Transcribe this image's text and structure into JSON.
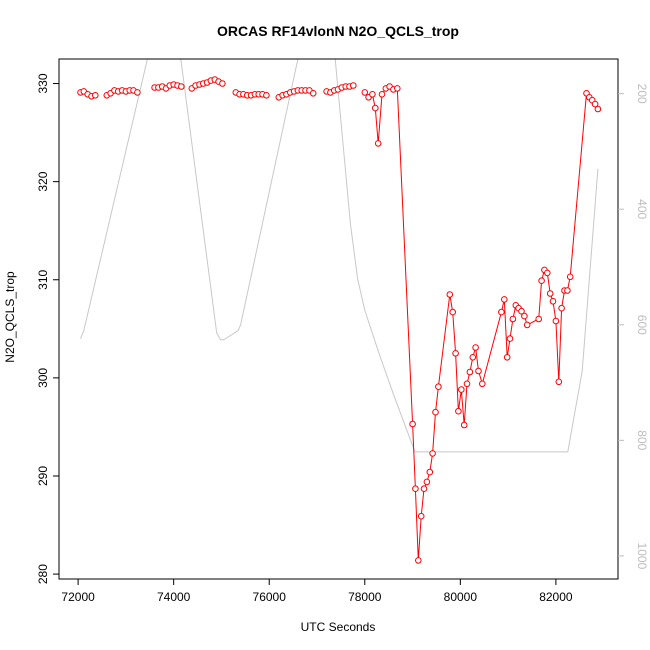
{
  "chart_data": {
    "type": "line",
    "title": "ORCAS RF14vlonN N2O_QCLS_trop",
    "xlabel": "UTC Seconds",
    "ylabel": "N2O_QCLS_trop",
    "xlim": [
      71600,
      83300
    ],
    "ylim": [
      279.5,
      332.5
    ],
    "x_ticks": [
      72000,
      74000,
      76000,
      78000,
      80000,
      82000
    ],
    "y_ticks": [
      280,
      290,
      300,
      310,
      320,
      330
    ],
    "y2_lim": [
      1040,
      140
    ],
    "y2_ticks": [
      200,
      400,
      600,
      800,
      1000
    ],
    "grid": false,
    "legend": "none",
    "colors": {
      "series": "#ff0000",
      "secondary": "#c8c8c8",
      "axis": "#000000",
      "secondary_axis": "#bdbdbd"
    },
    "series": [
      {
        "marker": "circle",
        "segments": [
          [
            [
              72050,
              329.1
            ],
            [
              72120,
              329.2
            ],
            [
              72200,
              328.9
            ],
            [
              72280,
              328.7
            ],
            [
              72360,
              328.8
            ]
          ],
          [
            [
              72600,
              328.8
            ],
            [
              72680,
              329.0
            ],
            [
              72760,
              329.3
            ],
            [
              72840,
              329.2
            ],
            [
              72920,
              329.3
            ],
            [
              73000,
              329.2
            ],
            [
              73080,
              329.3
            ],
            [
              73160,
              329.3
            ],
            [
              73240,
              329.1
            ]
          ],
          [
            [
              73600,
              329.6
            ],
            [
              73680,
              329.6
            ],
            [
              73760,
              329.7
            ],
            [
              73840,
              329.5
            ],
            [
              73920,
              329.8
            ],
            [
              74000,
              329.9
            ],
            [
              74080,
              329.8
            ],
            [
              74160,
              329.7
            ]
          ],
          [
            [
              74380,
              329.5
            ],
            [
              74460,
              329.8
            ],
            [
              74540,
              329.9
            ],
            [
              74620,
              330.0
            ],
            [
              74700,
              330.1
            ],
            [
              74780,
              330.3
            ],
            [
              74860,
              330.4
            ],
            [
              74940,
              330.2
            ],
            [
              75020,
              330.0
            ]
          ],
          [
            [
              75300,
              329.1
            ],
            [
              75380,
              328.9
            ],
            [
              75460,
              328.9
            ],
            [
              75540,
              328.8
            ],
            [
              75620,
              328.8
            ],
            [
              75700,
              328.9
            ],
            [
              75780,
              328.9
            ],
            [
              75860,
              328.9
            ],
            [
              75940,
              328.8
            ]
          ],
          [
            [
              76200,
              328.6
            ],
            [
              76280,
              328.8
            ],
            [
              76360,
              328.9
            ],
            [
              76440,
              329.1
            ],
            [
              76520,
              329.2
            ],
            [
              76600,
              329.3
            ],
            [
              76680,
              329.3
            ],
            [
              76760,
              329.3
            ],
            [
              76840,
              329.3
            ],
            [
              76920,
              329.0
            ]
          ],
          [
            [
              77200,
              329.2
            ],
            [
              77280,
              329.1
            ],
            [
              77360,
              329.3
            ],
            [
              77440,
              329.4
            ],
            [
              77520,
              329.6
            ],
            [
              77600,
              329.7
            ],
            [
              77680,
              329.7
            ],
            [
              77760,
              329.8
            ]
          ],
          [
            [
              78000,
              329.1
            ],
            [
              78080,
              328.6
            ],
            [
              78160,
              328.9
            ],
            [
              78220,
              327.5
            ],
            [
              78280,
              323.9
            ],
            [
              78360,
              328.9
            ],
            [
              78440,
              329.5
            ],
            [
              78520,
              329.7
            ],
            [
              78600,
              329.4
            ],
            [
              78680,
              329.5
            ],
            [
              79000,
              295.3
            ],
            [
              79060,
              288.7
            ],
            [
              79120,
              281.4
            ],
            [
              79180,
              285.9
            ],
            [
              79240,
              288.7
            ],
            [
              79300,
              289.4
            ],
            [
              79360,
              290.4
            ],
            [
              79420,
              292.3
            ],
            [
              79480,
              296.5
            ],
            [
              79540,
              299.1
            ],
            [
              79780,
              308.5
            ],
            [
              79840,
              306.7
            ],
            [
              79900,
              302.5
            ],
            [
              79960,
              296.6
            ],
            [
              80020,
              298.8
            ],
            [
              80080,
              295.2
            ],
            [
              80140,
              299.4
            ],
            [
              80200,
              300.6
            ],
            [
              80260,
              302.1
            ],
            [
              80320,
              303.1
            ],
            [
              80380,
              300.7
            ],
            [
              80460,
              299.4
            ],
            [
              80860,
              306.7
            ],
            [
              80920,
              308.0
            ],
            [
              80980,
              302.1
            ],
            [
              81040,
              304.0
            ],
            [
              81100,
              306.0
            ],
            [
              81160,
              307.4
            ],
            [
              81220,
              307.1
            ],
            [
              81280,
              306.8
            ],
            [
              81340,
              306.3
            ],
            [
              81400,
              305.4
            ],
            [
              81640,
              306.0
            ],
            [
              81700,
              309.9
            ],
            [
              81760,
              311.0
            ],
            [
              81820,
              310.7
            ],
            [
              81880,
              308.6
            ],
            [
              81940,
              307.8
            ],
            [
              82000,
              305.8
            ],
            [
              82060,
              299.6
            ],
            [
              82120,
              307.1
            ],
            [
              82180,
              308.9
            ],
            [
              82240,
              308.9
            ],
            [
              82300,
              310.3
            ],
            [
              82640,
              329.0
            ],
            [
              82700,
              328.6
            ],
            [
              82760,
              328.3
            ],
            [
              82820,
              327.9
            ],
            [
              82880,
              327.4
            ]
          ]
        ]
      },
      {
        "axis": "right",
        "style": "line",
        "points": [
          [
            72050,
            624
          ],
          [
            72120,
            610
          ],
          [
            73450,
            140
          ],
          [
            74150,
            140
          ],
          [
            74900,
            614
          ],
          [
            74980,
            626
          ],
          [
            75050,
            626
          ],
          [
            75350,
            610
          ],
          [
            75400,
            600
          ],
          [
            76600,
            140
          ],
          [
            77380,
            140
          ],
          [
            77700,
            425
          ],
          [
            77850,
            520
          ],
          [
            78000,
            575
          ],
          [
            78300,
            650
          ],
          [
            78600,
            720
          ],
          [
            79050,
            820
          ],
          [
            79120,
            820
          ],
          [
            82250,
            820
          ],
          [
            82550,
            680
          ],
          [
            82880,
            330
          ]
        ]
      }
    ]
  }
}
